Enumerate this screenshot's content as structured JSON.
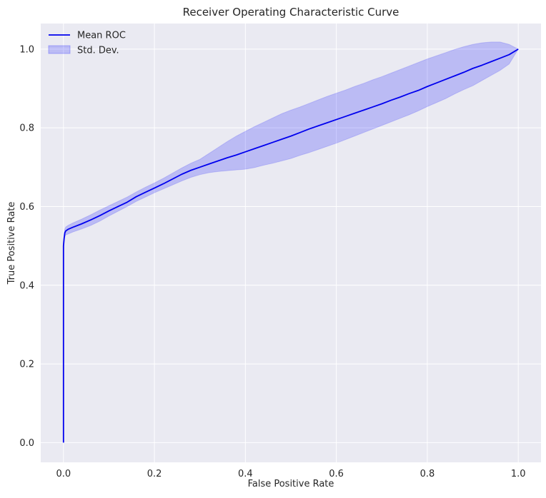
{
  "chart_data": {
    "type": "line",
    "title": "Receiver Operating Characteristic Curve",
    "xlabel": "False Positive Rate",
    "ylabel": "True Positive Rate",
    "xlim": [
      -0.05,
      1.05
    ],
    "ylim": [
      -0.05,
      1.065
    ],
    "xticks": [
      0.0,
      0.2,
      0.4,
      0.6,
      0.8,
      1.0
    ],
    "xtick_labels": [
      "0.0",
      "0.2",
      "0.4",
      "0.6",
      "0.8",
      "1.0"
    ],
    "yticks": [
      0.0,
      0.2,
      0.4,
      0.6,
      0.8,
      1.0
    ],
    "ytick_labels": [
      "0.0",
      "0.2",
      "0.4",
      "0.6",
      "0.8",
      "1.0"
    ],
    "grid": true,
    "legend_position": "top-left",
    "colors": {
      "background": "#EAEAF2",
      "grid": "#FFFFFF",
      "mean_line": "#0000EE",
      "band_fill": "#0000FF",
      "band_alpha": 0.2
    },
    "series": [
      {
        "name": "Mean ROC",
        "kind": "line",
        "x": [
          0.0,
          0.0,
          0.0015,
          0.003,
          0.005,
          0.01,
          0.02,
          0.04,
          0.06,
          0.08,
          0.1,
          0.12,
          0.14,
          0.16,
          0.18,
          0.2,
          0.22,
          0.24,
          0.26,
          0.28,
          0.3,
          0.32,
          0.34,
          0.36,
          0.38,
          0.4,
          0.42,
          0.44,
          0.46,
          0.48,
          0.5,
          0.52,
          0.54,
          0.56,
          0.58,
          0.6,
          0.62,
          0.64,
          0.66,
          0.68,
          0.7,
          0.72,
          0.74,
          0.76,
          0.78,
          0.8,
          0.82,
          0.84,
          0.86,
          0.88,
          0.9,
          0.92,
          0.94,
          0.96,
          0.98,
          1.0
        ],
        "y": [
          0.0,
          0.5,
          0.52,
          0.533,
          0.538,
          0.542,
          0.547,
          0.556,
          0.566,
          0.577,
          0.589,
          0.6,
          0.611,
          0.625,
          0.636,
          0.647,
          0.658,
          0.67,
          0.682,
          0.692,
          0.7,
          0.708,
          0.716,
          0.724,
          0.731,
          0.739,
          0.747,
          0.755,
          0.763,
          0.771,
          0.779,
          0.788,
          0.797,
          0.805,
          0.813,
          0.821,
          0.829,
          0.837,
          0.845,
          0.853,
          0.861,
          0.87,
          0.878,
          0.887,
          0.895,
          0.905,
          0.914,
          0.923,
          0.932,
          0.941,
          0.951,
          0.959,
          0.968,
          0.977,
          0.986,
          1.0
        ]
      },
      {
        "name": "Std. Dev.",
        "kind": "band",
        "x": [
          0.0,
          0.0,
          0.0015,
          0.003,
          0.005,
          0.01,
          0.02,
          0.04,
          0.06,
          0.08,
          0.1,
          0.12,
          0.14,
          0.16,
          0.18,
          0.2,
          0.22,
          0.24,
          0.26,
          0.28,
          0.3,
          0.32,
          0.34,
          0.36,
          0.38,
          0.4,
          0.42,
          0.44,
          0.46,
          0.48,
          0.5,
          0.52,
          0.54,
          0.56,
          0.58,
          0.6,
          0.62,
          0.64,
          0.66,
          0.68,
          0.7,
          0.72,
          0.74,
          0.76,
          0.78,
          0.8,
          0.82,
          0.84,
          0.86,
          0.88,
          0.9,
          0.92,
          0.94,
          0.96,
          0.98,
          1.0
        ],
        "lower": [
          0.0,
          0.49,
          0.51,
          0.523,
          0.528,
          0.53,
          0.535,
          0.543,
          0.552,
          0.563,
          0.576,
          0.588,
          0.6,
          0.613,
          0.624,
          0.635,
          0.645,
          0.655,
          0.665,
          0.674,
          0.681,
          0.686,
          0.689,
          0.691,
          0.693,
          0.695,
          0.699,
          0.705,
          0.71,
          0.716,
          0.722,
          0.73,
          0.737,
          0.745,
          0.753,
          0.761,
          0.77,
          0.779,
          0.788,
          0.797,
          0.806,
          0.815,
          0.824,
          0.833,
          0.843,
          0.854,
          0.864,
          0.874,
          0.886,
          0.897,
          0.907,
          0.92,
          0.933,
          0.946,
          0.962,
          1.0
        ],
        "upper": [
          0.0,
          0.51,
          0.53,
          0.543,
          0.548,
          0.552,
          0.558,
          0.568,
          0.579,
          0.591,
          0.602,
          0.613,
          0.624,
          0.637,
          0.649,
          0.66,
          0.672,
          0.685,
          0.698,
          0.71,
          0.72,
          0.735,
          0.75,
          0.765,
          0.779,
          0.791,
          0.803,
          0.814,
          0.825,
          0.836,
          0.845,
          0.853,
          0.862,
          0.871,
          0.88,
          0.888,
          0.896,
          0.905,
          0.913,
          0.922,
          0.93,
          0.939,
          0.948,
          0.957,
          0.966,
          0.975,
          0.983,
          0.991,
          0.999,
          1.006,
          1.012,
          1.016,
          1.018,
          1.018,
          1.012,
          1.0
        ]
      }
    ]
  }
}
